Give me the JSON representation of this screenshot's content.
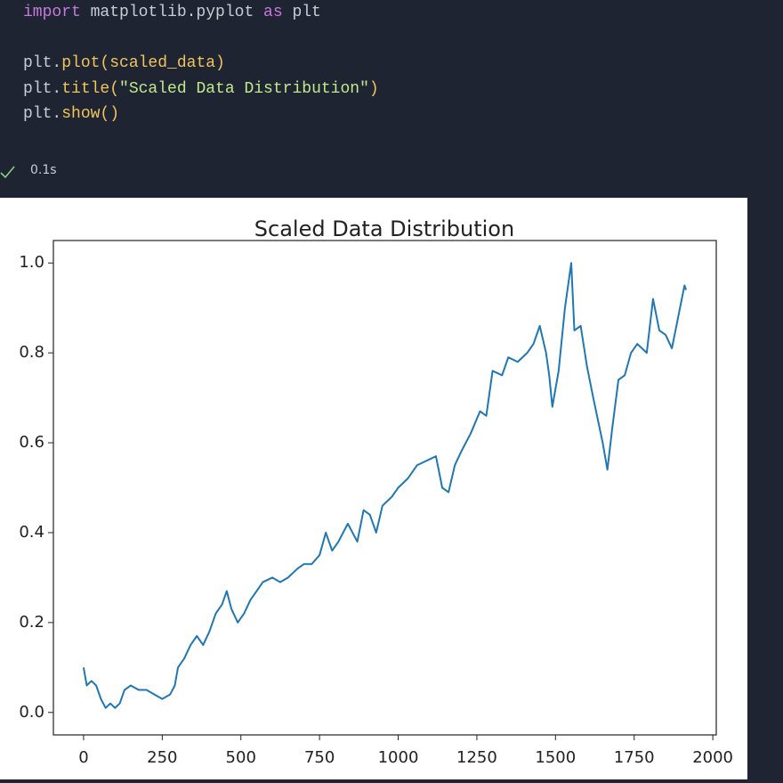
{
  "code": {
    "lines": [
      {
        "tokens": [
          {
            "text": "import",
            "color": "#c678dd"
          },
          {
            "text": " matplotlib.pyplot ",
            "color": "#c8ccd4"
          },
          {
            "text": "as",
            "color": "#c678dd"
          },
          {
            "text": " plt",
            "color": "#c8ccd4"
          }
        ]
      },
      {
        "tokens": []
      },
      {
        "tokens": [
          {
            "text": "plt.",
            "color": "#c8ccd4"
          },
          {
            "text": "plot(scaled_data)",
            "color": "#f2c55c"
          }
        ]
      },
      {
        "tokens": [
          {
            "text": "plt.",
            "color": "#c8ccd4"
          },
          {
            "text": "title(",
            "color": "#f2c55c"
          },
          {
            "text": "\"Scaled Data Distribution\"",
            "color": "#c3e88d"
          },
          {
            "text": ")",
            "color": "#f2c55c"
          }
        ]
      },
      {
        "tokens": [
          {
            "text": "plt.",
            "color": "#c8ccd4"
          },
          {
            "text": "show()",
            "color": "#f2c55c"
          }
        ]
      }
    ]
  },
  "execution_time": "0.1s",
  "chart_data": {
    "type": "line",
    "title": "Scaled Data Distribution",
    "x": [
      0,
      10,
      25,
      40,
      55,
      70,
      85,
      100,
      115,
      130,
      150,
      175,
      200,
      225,
      250,
      275,
      290,
      300,
      320,
      340,
      360,
      380,
      400,
      420,
      440,
      455,
      470,
      490,
      510,
      530,
      550,
      570,
      600,
      625,
      650,
      680,
      700,
      725,
      750,
      770,
      790,
      810,
      840,
      870,
      890,
      910,
      930,
      950,
      980,
      1000,
      1030,
      1060,
      1090,
      1120,
      1140,
      1160,
      1180,
      1200,
      1230,
      1260,
      1280,
      1300,
      1330,
      1350,
      1380,
      1410,
      1430,
      1450,
      1470,
      1480,
      1490,
      1510,
      1530,
      1550,
      1560,
      1580,
      1600,
      1620,
      1650,
      1665,
      1680,
      1700,
      1720,
      1740,
      1760,
      1790,
      1810,
      1830,
      1850,
      1870,
      1890,
      1910,
      1915
    ],
    "series": [
      {
        "name": "scaled_data",
        "color": "#1f77b4",
        "values": [
          0.1,
          0.06,
          0.07,
          0.06,
          0.03,
          0.01,
          0.02,
          0.01,
          0.02,
          0.05,
          0.06,
          0.05,
          0.05,
          0.04,
          0.03,
          0.04,
          0.06,
          0.1,
          0.12,
          0.15,
          0.17,
          0.15,
          0.18,
          0.22,
          0.24,
          0.27,
          0.23,
          0.2,
          0.22,
          0.25,
          0.27,
          0.29,
          0.3,
          0.29,
          0.3,
          0.32,
          0.33,
          0.33,
          0.35,
          0.4,
          0.36,
          0.38,
          0.42,
          0.38,
          0.45,
          0.44,
          0.4,
          0.46,
          0.48,
          0.5,
          0.52,
          0.55,
          0.56,
          0.57,
          0.5,
          0.49,
          0.55,
          0.58,
          0.62,
          0.67,
          0.66,
          0.76,
          0.75,
          0.79,
          0.78,
          0.8,
          0.82,
          0.86,
          0.8,
          0.75,
          0.68,
          0.76,
          0.9,
          1.0,
          0.85,
          0.86,
          0.77,
          0.7,
          0.6,
          0.54,
          0.63,
          0.74,
          0.75,
          0.8,
          0.82,
          0.8,
          0.92,
          0.85,
          0.84,
          0.81,
          0.88,
          0.95,
          0.94
        ]
      }
    ],
    "xlim": [
      -96,
      2011
    ],
    "ylim": [
      -0.05,
      1.05
    ],
    "xticks": [
      0,
      250,
      500,
      750,
      1000,
      1250,
      1500,
      1750,
      2000
    ],
    "yticks": [
      {
        "value": 0,
        "label": "0.0"
      },
      {
        "value": 0.2,
        "label": "0.2"
      },
      {
        "value": 0.4,
        "label": "0.4"
      },
      {
        "value": 0.6,
        "label": "0.6"
      },
      {
        "value": 0.8,
        "label": "0.8"
      },
      {
        "value": 1,
        "label": "1.0"
      }
    ],
    "grid": false
  }
}
